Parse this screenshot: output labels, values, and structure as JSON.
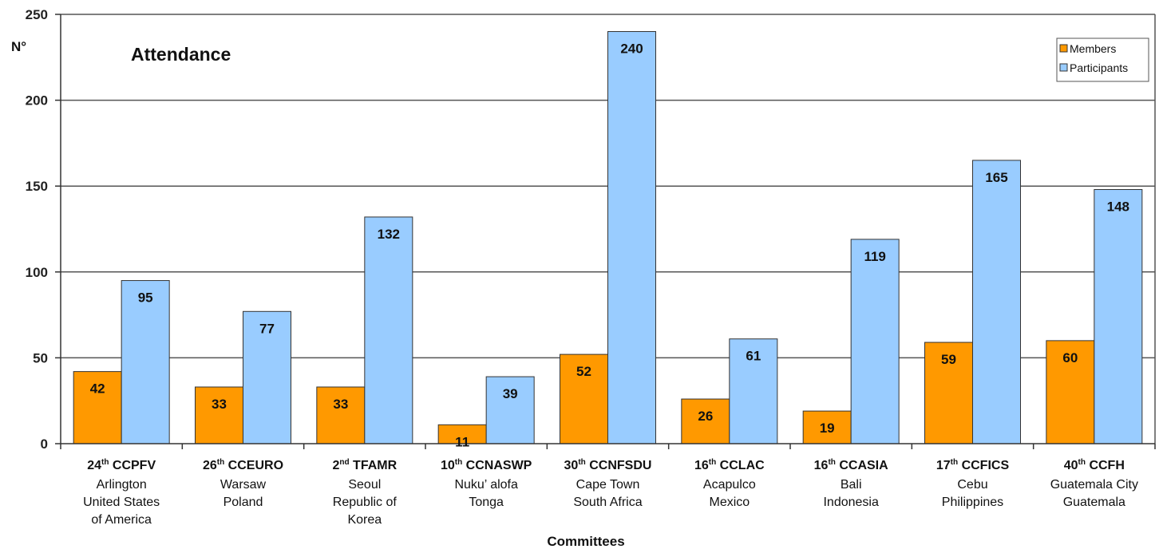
{
  "chart_data": {
    "type": "bar",
    "title": "Attendance",
    "ylabel": "N°",
    "xlabel": "Committees",
    "ylim": [
      0,
      250
    ],
    "yticks": [
      "0",
      "50",
      "100",
      "150",
      "200",
      "250"
    ],
    "grid": true,
    "legend_position": "top-right",
    "categories": [
      {
        "num": "24",
        "sup": "th",
        "code": "CCPFV",
        "lines": [
          "Arlington",
          "United States",
          "of America"
        ]
      },
      {
        "num": "26",
        "sup": "th",
        "code": "CCEURO",
        "lines": [
          "Warsaw",
          "Poland"
        ]
      },
      {
        "num": "2",
        "sup": "nd",
        "code": "TFAMR",
        "lines": [
          "Seoul",
          "Republic of",
          "Korea"
        ]
      },
      {
        "num": "10",
        "sup": "th",
        "code": "CCNASWP",
        "lines": [
          "Nuku’ alofa",
          "Tonga"
        ]
      },
      {
        "num": "30",
        "sup": "th",
        "code": "CCNFSDU",
        "lines": [
          "Cape Town",
          "South Africa"
        ]
      },
      {
        "num": "16",
        "sup": "th",
        "code": "CCLAC",
        "lines": [
          "Acapulco",
          "Mexico"
        ]
      },
      {
        "num": "16",
        "sup": "th",
        "code": "CCASIA",
        "lines": [
          "Bali",
          "Indonesia"
        ]
      },
      {
        "num": "17",
        "sup": "th",
        "code": "CCFICS",
        "lines": [
          "Cebu",
          "Philippines"
        ]
      },
      {
        "num": "40",
        "sup": "th",
        "code": "CCFH",
        "lines": [
          "Guatemala City",
          "Guatemala"
        ]
      }
    ],
    "series": [
      {
        "name": "Members",
        "color": "#ff9900",
        "values": [
          42,
          33,
          33,
          11,
          52,
          26,
          19,
          59,
          60
        ]
      },
      {
        "name": "Participants",
        "color": "#99ccff",
        "values": [
          95,
          77,
          132,
          39,
          240,
          61,
          119,
          165,
          148
        ]
      }
    ]
  }
}
